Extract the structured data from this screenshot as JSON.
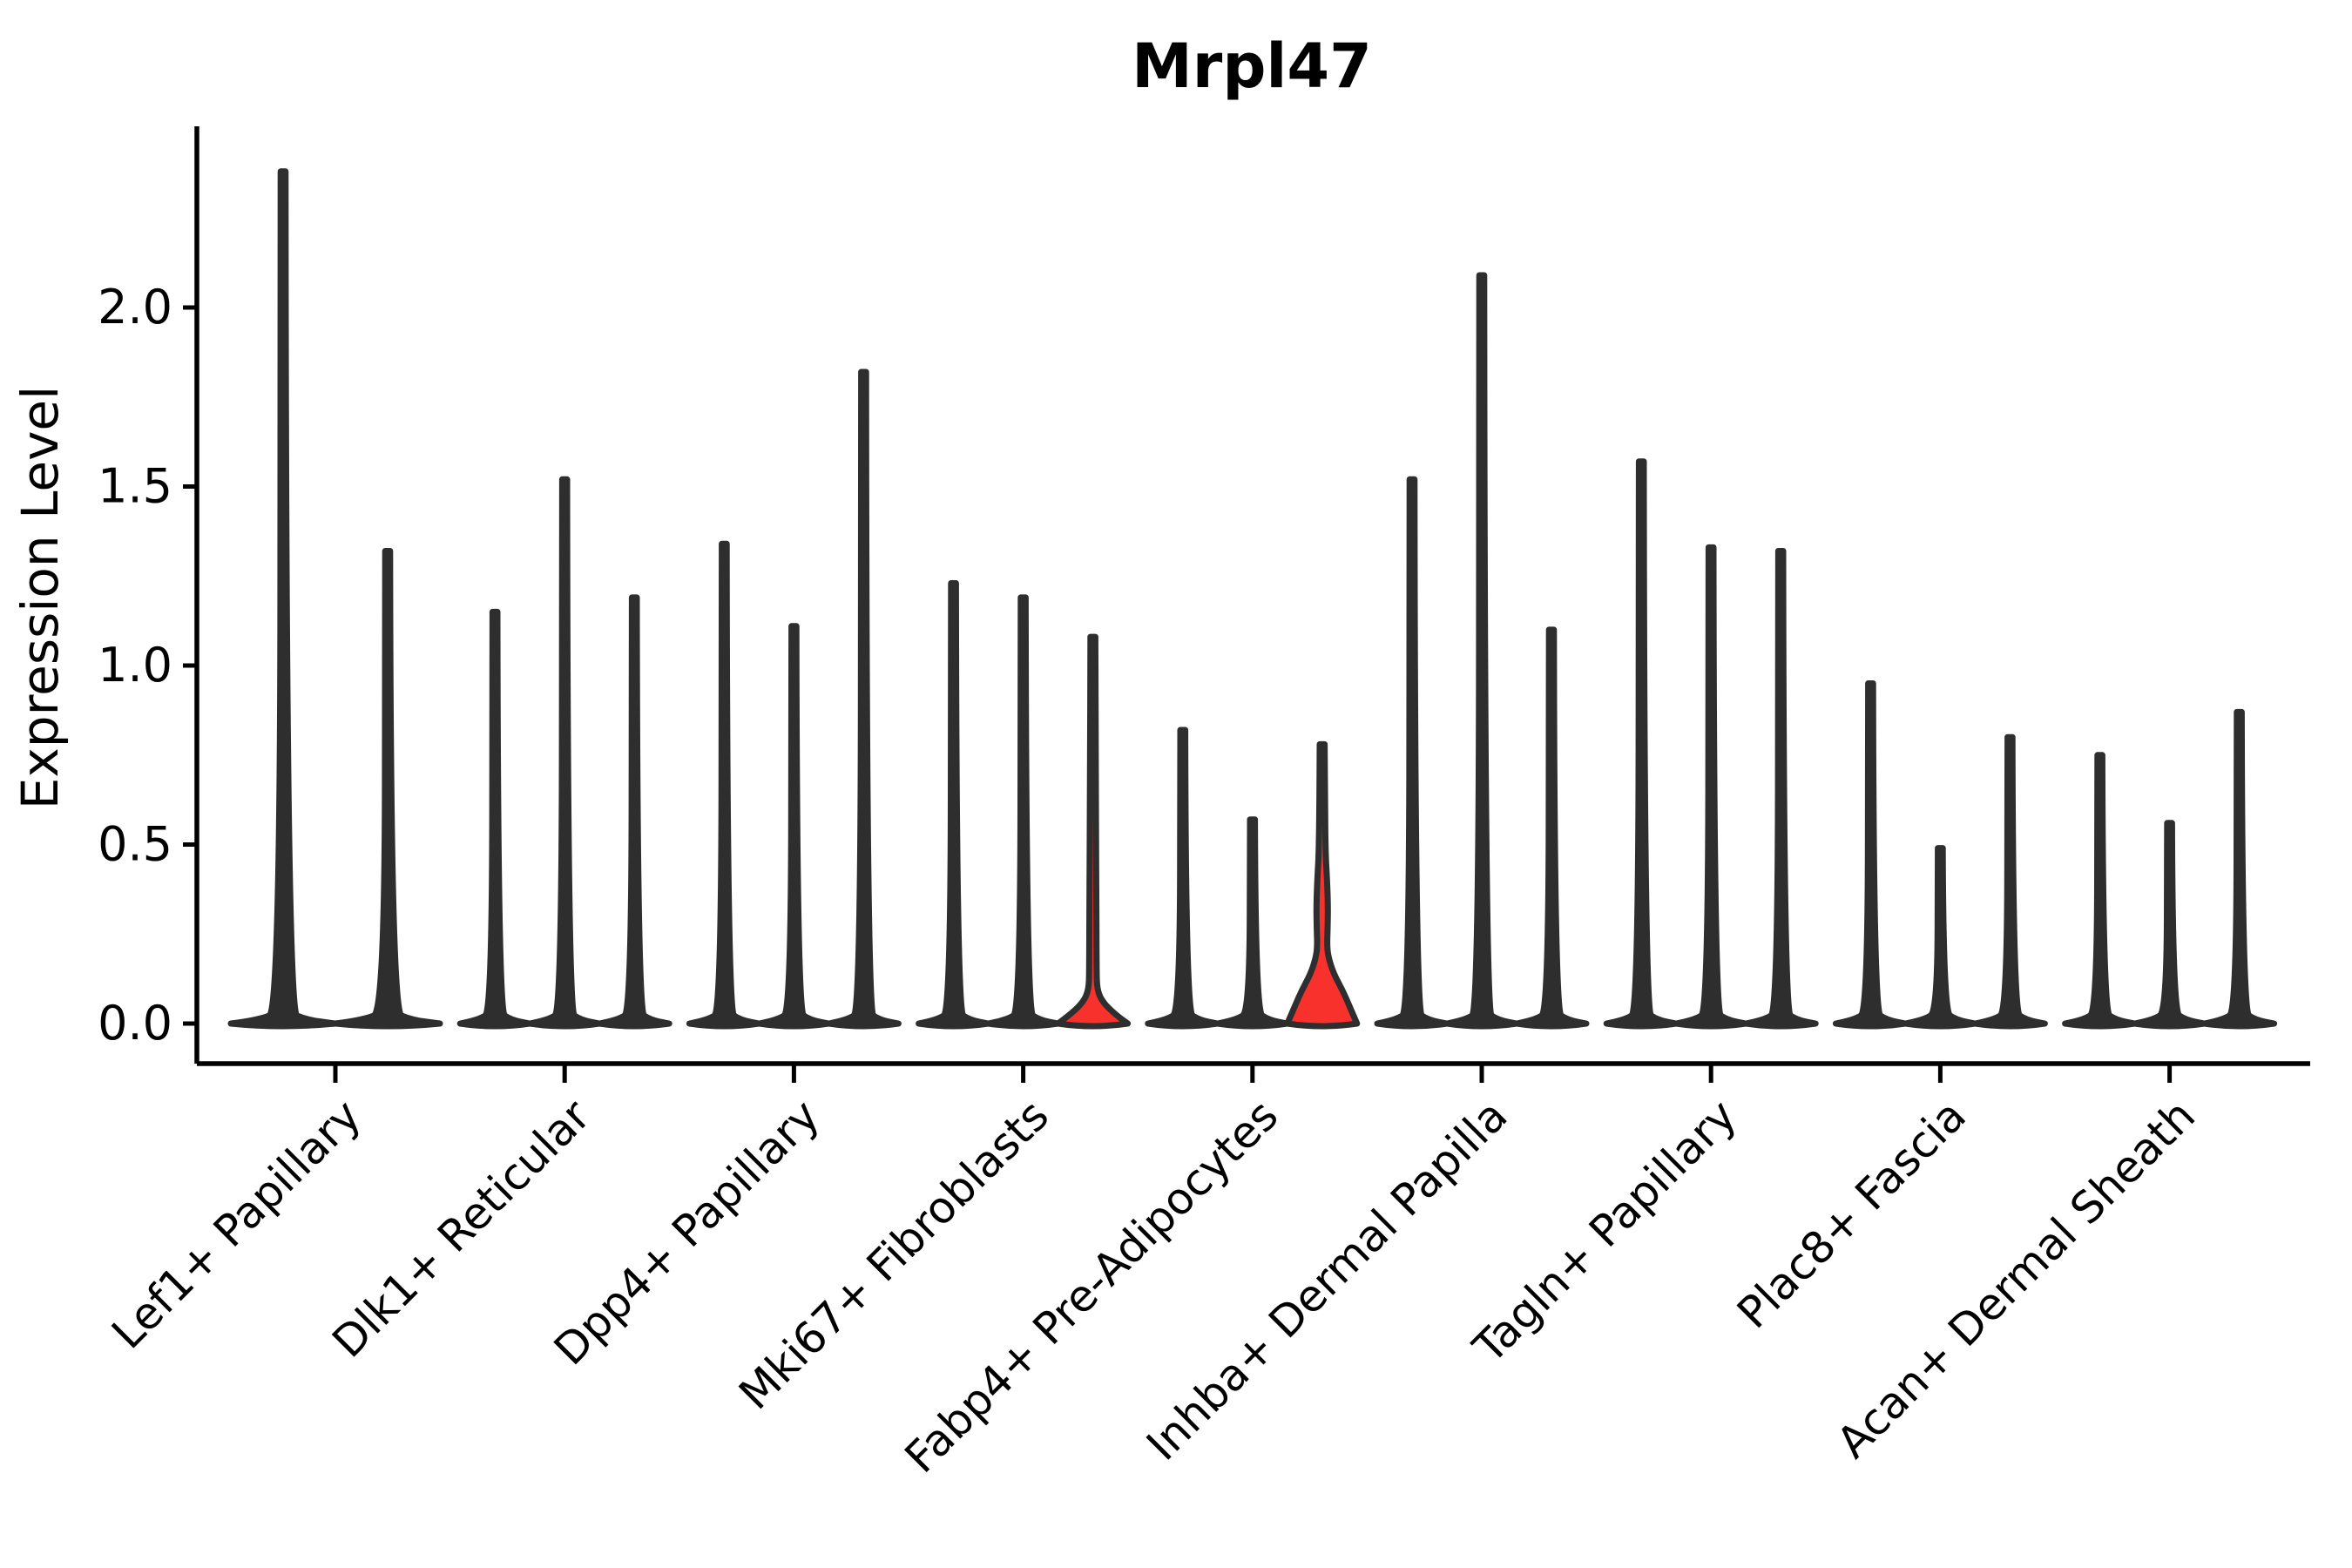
{
  "chart_data": {
    "type": "violin",
    "title": "Mrpl47",
    "ylabel": "Expression Level",
    "xlabel": "",
    "yticks": [
      "0.0",
      "0.5",
      "1.0",
      "1.5",
      "2.0"
    ],
    "ytick_values": [
      0.0,
      0.5,
      1.0,
      1.5,
      2.0
    ],
    "ylim": [
      0,
      2.5
    ],
    "grid": false,
    "legend": false,
    "categories": [
      "Lef1+ Papillary",
      "Dlk1+ Reticular",
      "Dpp4+ Papillary",
      "Mki67+ Fibroblasts",
      "Fabp4+ Pre-Adipocytes",
      "Inhba+ Dermal Papilla",
      "Tagln+ Papillary",
      "Plac8+ Fascia",
      "Acan+ Dermal Sheath"
    ],
    "groups": [
      {
        "label": "Lef1+ Papillary",
        "violins": [
          {
            "max": 2.38,
            "red": false
          },
          {
            "max": 1.32,
            "red": false
          }
        ]
      },
      {
        "label": "Dlk1+ Reticular",
        "violins": [
          {
            "max": 1.15,
            "red": false
          },
          {
            "max": 1.52,
            "red": false
          },
          {
            "max": 1.19,
            "red": false
          }
        ]
      },
      {
        "label": "Dpp4+ Papillary",
        "violins": [
          {
            "max": 1.34,
            "red": false
          },
          {
            "max": 1.11,
            "red": false
          },
          {
            "max": 1.82,
            "red": false
          }
        ]
      },
      {
        "label": "Mki67+ Fibroblasts",
        "violins": [
          {
            "max": 1.23,
            "red": false
          },
          {
            "max": 1.19,
            "red": false
          },
          {
            "max": 1.08,
            "red": true,
            "profile": [
              [
                0,
                40
              ],
              [
                0.025,
                26
              ],
              [
                0.06,
                11
              ],
              [
                0.095,
                4.8
              ],
              [
                0.15,
                4.2
              ],
              [
                0.35,
                4.0
              ],
              [
                0.7,
                3.2
              ],
              [
                1.08,
                2.8
              ]
            ]
          }
        ]
      },
      {
        "label": "Fabp4+ Pre-Adipocytes",
        "violins": [
          {
            "max": 0.82,
            "red": false
          },
          {
            "max": 0.57,
            "red": false
          },
          {
            "max": 0.78,
            "red": true,
            "profile": [
              [
                0,
                40
              ],
              [
                0.045,
                32
              ],
              [
                0.09,
                24
              ],
              [
                0.14,
                13
              ],
              [
                0.19,
                6.6
              ],
              [
                0.225,
                5.6
              ],
              [
                0.27,
                6.3
              ],
              [
                0.34,
                6.6
              ],
              [
                0.42,
                5.2
              ],
              [
                0.47,
                4.0
              ],
              [
                0.6,
                3.2
              ],
              [
                0.78,
                2.8
              ]
            ]
          }
        ]
      },
      {
        "label": "Inhba+ Dermal Papilla",
        "violins": [
          {
            "max": 1.52,
            "red": false
          },
          {
            "max": 2.09,
            "red": false
          },
          {
            "max": 1.1,
            "red": false
          }
        ]
      },
      {
        "label": "Tagln+ Papillary",
        "violins": [
          {
            "max": 1.57,
            "red": false
          },
          {
            "max": 1.33,
            "red": false
          },
          {
            "max": 1.32,
            "red": false
          }
        ]
      },
      {
        "label": "Plac8+ Fascia",
        "violins": [
          {
            "max": 0.95,
            "red": false
          },
          {
            "max": 0.49,
            "red": false
          },
          {
            "max": 0.8,
            "red": false
          }
        ]
      },
      {
        "label": "Acan+ Dermal Sheath",
        "violins": [
          {
            "max": 0.75,
            "red": false
          },
          {
            "max": 0.56,
            "red": false
          },
          {
            "max": 0.87,
            "red": false
          }
        ]
      }
    ],
    "colors": {
      "highlight_fill": "#f8312d",
      "violin_outline": "#2e2e2e",
      "axis": "#000000",
      "background": "#ffffff"
    }
  }
}
